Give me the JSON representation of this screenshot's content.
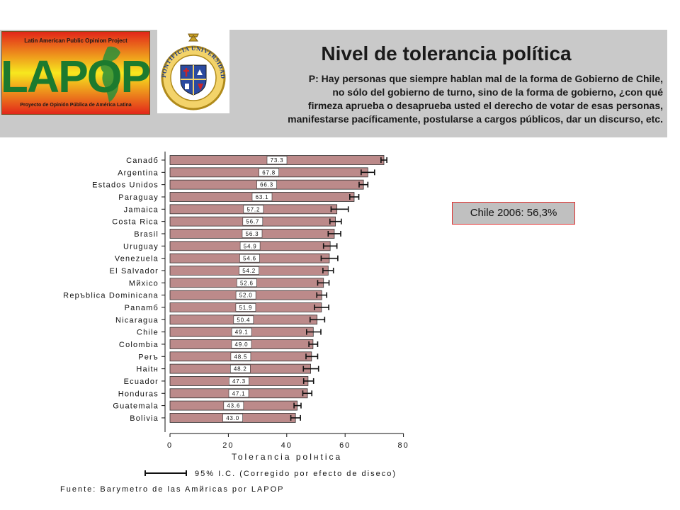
{
  "header": {
    "title": "Nivel de tolerancia política",
    "question_lines": [
      "P: Hay personas que siempre hablan mal de la forma de Gobierno de Chile,",
      "no sólo del gobierno de turno, sino de la forma de gobierno, ¿con qué",
      "firmeza aprueba o desaprueba usted el derecho de votar de esas personas,",
      "manifestarse pacíficamente, postularse a cargos públicos, dar un discurso, etc."
    ]
  },
  "lapop_logo": {
    "top_text": "Latin American Public Opinion Project",
    "main_text": "LAPOP",
    "bottom_text": "Proyecto de Opinión Pública de América Latina"
  },
  "seal": {
    "ring_text": "PONTIFICIA UNIVERSIDAD CATOLICA DE CHILE"
  },
  "callout": {
    "text": "Chile 2006: 56,3%"
  },
  "colors": {
    "bar_fill": "#bc8a8a",
    "bar_stroke": "#333333",
    "header_band": "#c9c9c9",
    "callout_border": "#e0302f"
  },
  "chart_data": {
    "type": "bar",
    "orientation": "horizontal",
    "categories": [
      "Canadб",
      "Argentina",
      "Estados Unidos",
      "Paraguay",
      "Jamaica",
      "Costa Rica",
      "Brasil",
      "Uruguay",
      "Venezuela",
      "El Salvador",
      "Mйxico",
      "Repъblica Dominicana",
      "Panamб",
      "Nicaragua",
      "Chile",
      "Colombia",
      "Perъ",
      "Haitн",
      "Ecuador",
      "Honduras",
      "Guatemala",
      "Bolivia"
    ],
    "values": [
      73.3,
      67.8,
      66.3,
      63.1,
      57.2,
      56.7,
      56.3,
      54.9,
      54.6,
      54.2,
      52.6,
      52.0,
      51.9,
      50.4,
      49.1,
      49.0,
      48.5,
      48.2,
      47.3,
      47.1,
      43.6,
      43.0
    ],
    "value_labels": [
      "73.3",
      "67.8",
      "66.3",
      "63.1",
      "57.2",
      "56.7",
      "56.3",
      "54.9",
      "54.6",
      "54.2",
      "52.6",
      "52.0",
      "51.9",
      "50.4",
      "49.1",
      "49.0",
      "48.5",
      "48.2",
      "47.3",
      "47.1",
      "43.6",
      "43.0"
    ],
    "ci_low": [
      72.3,
      65.5,
      64.8,
      61.6,
      55.2,
      54.8,
      54.2,
      52.6,
      51.8,
      52.4,
      50.6,
      50.3,
      49.5,
      48.0,
      46.8,
      47.6,
      46.6,
      45.7,
      45.8,
      45.5,
      42.5,
      41.4
    ],
    "ci_high": [
      74.3,
      70.1,
      67.8,
      64.7,
      61.1,
      58.7,
      58.5,
      57.2,
      57.5,
      56.0,
      54.5,
      53.7,
      54.4,
      53.0,
      51.7,
      50.6,
      50.6,
      50.9,
      49.2,
      48.6,
      44.9,
      44.7
    ],
    "xlim": [
      0,
      80
    ],
    "x_ticks": [
      "0",
      "20",
      "40",
      "60",
      "80"
    ],
    "xlabel": "Tolerancia polнtica",
    "ylabel": "",
    "legend": "95% I.C. (Corregido por efecto de diseco)",
    "source": "Fuente: Barуmetro de las Amйricas por LAPOP"
  }
}
